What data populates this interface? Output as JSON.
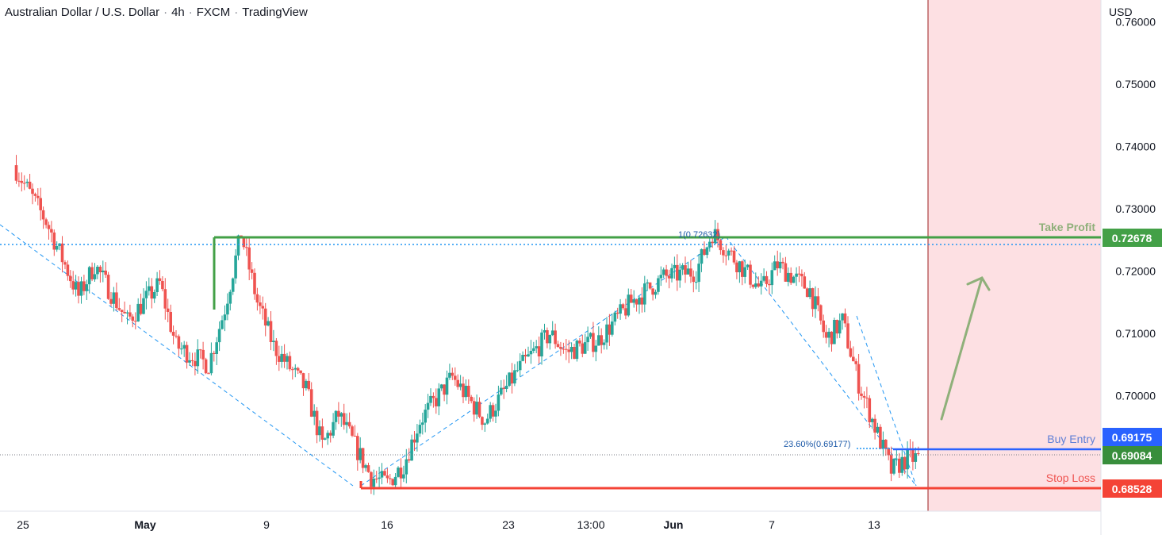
{
  "header": {
    "symbol": "Australian Dollar / U.S. Dollar",
    "interval": "4h",
    "broker": "FXCM",
    "platform": "TradingView"
  },
  "axis": {
    "currency": "USD",
    "y_ticks": [
      "0.76000",
      "0.75000",
      "0.74000",
      "0.73000",
      "0.72000",
      "0.71000",
      "0.70000"
    ],
    "x_ticks": [
      "25",
      "May",
      "9",
      "16",
      "23",
      "13:00",
      "Jun",
      "7",
      "13"
    ]
  },
  "levels": {
    "take_profit": {
      "label": "Take Profit",
      "price": "0.72678"
    },
    "buy_entry": {
      "label": "Buy Entry",
      "price": "0.69175"
    },
    "current": {
      "price": "0.69084"
    },
    "stop_loss": {
      "label": "Stop Loss",
      "price": "0.68528"
    },
    "fib_high": {
      "label": "1(0.72632)"
    },
    "fib_236": {
      "label": "23.60%(0.69177)"
    }
  },
  "colors": {
    "up": "#26a69a",
    "down": "#ef5350",
    "take_profit": "#43a047",
    "buy_entry": "#2962ff",
    "stop_loss": "#f44336",
    "current": "#388e3c",
    "zone": "#fde0e3",
    "fib": "#2196f3",
    "arrow": "#8fb07a"
  },
  "chart_data": {
    "type": "candlestick",
    "ylim": [
      0.6815,
      0.7635
    ],
    "x_ticks": [
      "25",
      "May",
      "9",
      "16",
      "23",
      "13:00",
      "Jun",
      "7",
      "13"
    ],
    "series": [
      {
        "name": "AUD/USD",
        "anchors": [
          [
            "2022-04-22",
            0.737
          ],
          [
            "2022-04-24",
            0.728
          ],
          [
            "2022-04-26",
            0.716
          ],
          [
            "2022-04-27",
            0.721
          ],
          [
            "2022-04-29",
            0.712
          ],
          [
            "2022-05-01",
            0.718
          ],
          [
            "2022-05-02",
            0.708
          ],
          [
            "2022-05-04",
            0.705
          ],
          [
            "2022-05-05",
            0.714
          ],
          [
            "2022-05-06",
            0.726
          ],
          [
            "2022-05-07",
            0.715
          ],
          [
            "2022-05-08",
            0.708
          ],
          [
            "2022-05-10",
            0.701
          ],
          [
            "2022-05-11",
            0.692
          ],
          [
            "2022-05-12",
            0.697
          ],
          [
            "2022-05-13",
            0.692
          ],
          [
            "2022-05-14",
            0.687
          ],
          [
            "2022-05-15",
            0.686
          ],
          [
            "2022-05-16",
            0.689
          ],
          [
            "2022-05-17",
            0.696
          ],
          [
            "2022-05-19",
            0.703
          ],
          [
            "2022-05-21",
            0.696
          ],
          [
            "2022-05-23",
            0.704
          ],
          [
            "2022-05-25",
            0.71
          ],
          [
            "2022-05-26",
            0.707
          ],
          [
            "2022-05-28",
            0.709
          ],
          [
            "2022-05-30",
            0.715
          ],
          [
            "2022-06-01",
            0.719
          ],
          [
            "2022-06-03",
            0.72
          ],
          [
            "2022-06-04",
            0.7262
          ],
          [
            "2022-06-06",
            0.72
          ],
          [
            "2022-06-07",
            0.717
          ],
          [
            "2022-06-08",
            0.721
          ],
          [
            "2022-06-09",
            0.719
          ],
          [
            "2022-06-10",
            0.717
          ],
          [
            "2022-06-11",
            0.709
          ],
          [
            "2022-06-12",
            0.712
          ],
          [
            "2022-06-13",
            0.702
          ],
          [
            "2022-06-14",
            0.695
          ],
          [
            "2022-06-15",
            0.688
          ],
          [
            "2022-06-16",
            0.69
          ]
        ]
      }
    ],
    "horizontal_levels": [
      {
        "name": "Take Profit",
        "value": 0.72678
      },
      {
        "name": "Buy Entry",
        "value": 0.69175
      },
      {
        "name": "Stop Loss",
        "value": 0.68528
      },
      {
        "value": 0.69084
      }
    ],
    "fib_levels": [
      {
        "label": "1(0.72632)",
        "value": 0.72632
      },
      {
        "label": "23.60%(0.69177)",
        "value": 0.69177
      }
    ]
  }
}
